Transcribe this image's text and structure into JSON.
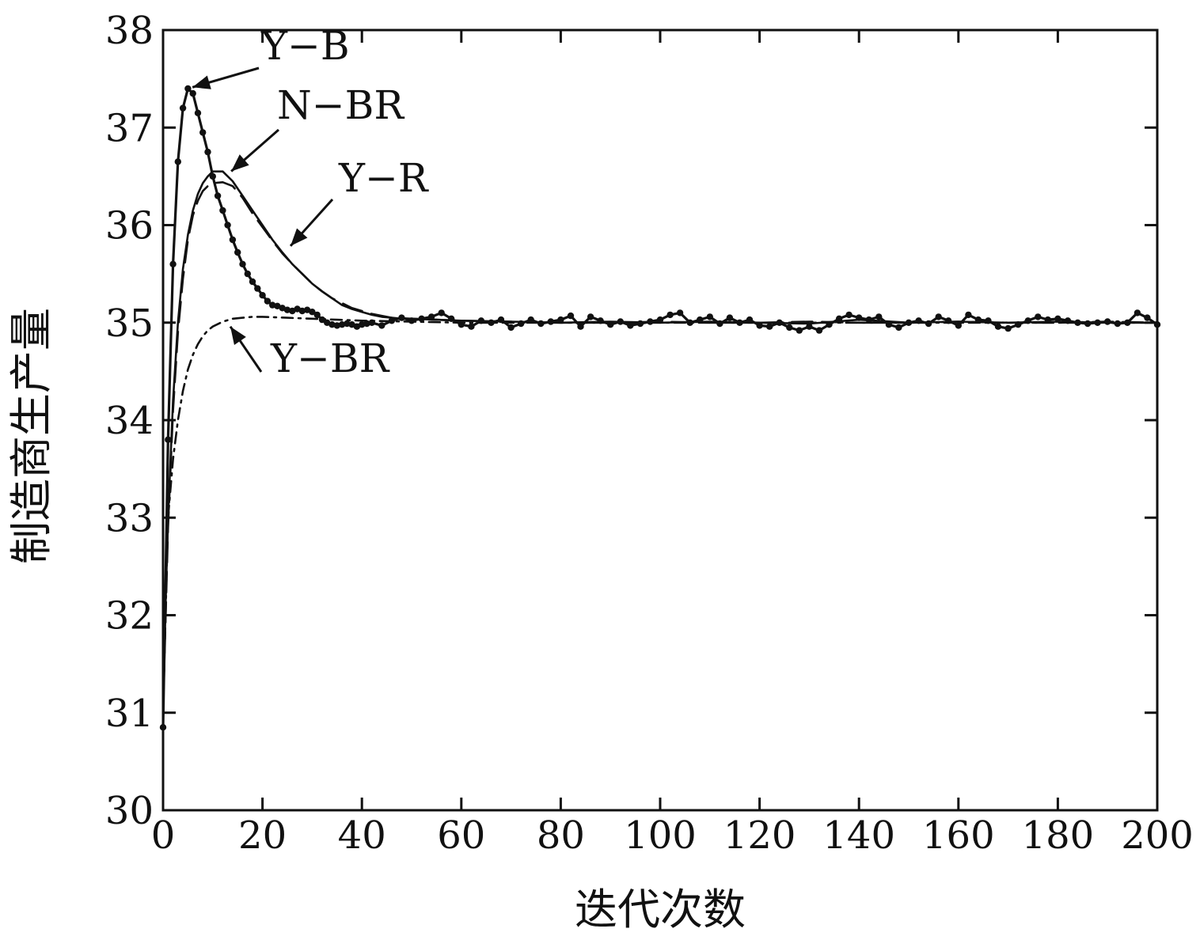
{
  "chart_data": {
    "type": "line",
    "title": "",
    "xlabel": "迭代次数",
    "ylabel": "制造商生产量",
    "xlim": [
      0,
      200
    ],
    "ylim": [
      30,
      38
    ],
    "xticks": [
      0,
      20,
      40,
      60,
      80,
      100,
      120,
      140,
      160,
      180,
      200
    ],
    "yticks": [
      30,
      31,
      32,
      33,
      34,
      35,
      36,
      37,
      38
    ],
    "grid": false,
    "legend": "none",
    "series": [
      {
        "name": "Y−B",
        "style": "solid-dots",
        "color": "#111111",
        "points": [
          [
            0,
            30.85
          ],
          [
            1,
            33.8
          ],
          [
            2,
            35.6
          ],
          [
            3,
            36.65
          ],
          [
            4,
            37.2
          ],
          [
            5,
            37.4
          ],
          [
            6,
            37.35
          ],
          [
            7,
            37.15
          ],
          [
            8,
            36.95
          ],
          [
            9,
            36.75
          ],
          [
            10,
            36.5
          ],
          [
            11,
            36.3
          ],
          [
            12,
            36.15
          ],
          [
            13,
            36.0
          ],
          [
            14,
            35.85
          ],
          [
            15,
            35.72
          ],
          [
            16,
            35.6
          ],
          [
            17,
            35.5
          ],
          [
            18,
            35.42
          ],
          [
            19,
            35.35
          ],
          [
            20,
            35.28
          ],
          [
            21,
            35.22
          ],
          [
            22,
            35.18
          ],
          [
            23,
            35.17
          ],
          [
            24,
            35.15
          ],
          [
            25,
            35.13
          ],
          [
            26,
            35.12
          ],
          [
            27,
            35.14
          ],
          [
            28,
            35.12
          ],
          [
            29,
            35.13
          ],
          [
            30,
            35.11
          ],
          [
            31,
            35.08
          ],
          [
            32,
            35.03
          ],
          [
            33,
            35.0
          ],
          [
            34,
            34.98
          ],
          [
            35,
            34.97
          ],
          [
            36,
            34.98
          ],
          [
            37,
            34.99
          ],
          [
            38,
            34.98
          ],
          [
            39,
            34.96
          ],
          [
            40,
            34.98
          ],
          [
            41,
            34.99
          ],
          [
            42,
            35.0
          ],
          [
            44,
            34.97
          ],
          [
            46,
            35.02
          ],
          [
            48,
            35.05
          ],
          [
            50,
            35.02
          ],
          [
            52,
            35.04
          ],
          [
            54,
            35.06
          ],
          [
            56,
            35.1
          ],
          [
            58,
            35.04
          ],
          [
            60,
            34.98
          ],
          [
            62,
            34.96
          ],
          [
            64,
            35.02
          ],
          [
            66,
            35.0
          ],
          [
            68,
            35.03
          ],
          [
            70,
            34.95
          ],
          [
            72,
            34.99
          ],
          [
            74,
            35.03
          ],
          [
            76,
            34.99
          ],
          [
            78,
            35.01
          ],
          [
            80,
            35.03
          ],
          [
            82,
            35.07
          ],
          [
            84,
            34.96
          ],
          [
            86,
            35.06
          ],
          [
            88,
            35.02
          ],
          [
            90,
            34.98
          ],
          [
            92,
            35.01
          ],
          [
            94,
            34.97
          ],
          [
            96,
            34.99
          ],
          [
            98,
            35.01
          ],
          [
            100,
            35.03
          ],
          [
            102,
            35.08
          ],
          [
            104,
            35.1
          ],
          [
            106,
            35.0
          ],
          [
            108,
            35.03
          ],
          [
            110,
            35.06
          ],
          [
            112,
            34.99
          ],
          [
            114,
            35.05
          ],
          [
            116,
            35.0
          ],
          [
            118,
            35.03
          ],
          [
            120,
            34.97
          ],
          [
            122,
            34.96
          ],
          [
            124,
            35.0
          ],
          [
            126,
            34.95
          ],
          [
            128,
            34.92
          ],
          [
            130,
            34.96
          ],
          [
            132,
            34.92
          ],
          [
            134,
            34.98
          ],
          [
            136,
            35.04
          ],
          [
            138,
            35.08
          ],
          [
            140,
            35.05
          ],
          [
            142,
            35.03
          ],
          [
            144,
            35.06
          ],
          [
            146,
            34.98
          ],
          [
            148,
            34.95
          ],
          [
            150,
            35.0
          ],
          [
            152,
            35.02
          ],
          [
            154,
            34.99
          ],
          [
            156,
            35.06
          ],
          [
            158,
            35.02
          ],
          [
            160,
            34.97
          ],
          [
            162,
            35.08
          ],
          [
            164,
            35.03
          ],
          [
            166,
            35.02
          ],
          [
            168,
            34.96
          ],
          [
            170,
            34.94
          ],
          [
            172,
            34.98
          ],
          [
            174,
            35.02
          ],
          [
            176,
            35.06
          ],
          [
            178,
            35.03
          ],
          [
            180,
            35.04
          ],
          [
            182,
            35.02
          ],
          [
            184,
            35.0
          ],
          [
            186,
            34.99
          ],
          [
            188,
            35.0
          ],
          [
            190,
            35.01
          ],
          [
            192,
            34.99
          ],
          [
            194,
            35.0
          ],
          [
            196,
            35.1
          ],
          [
            198,
            35.05
          ],
          [
            200,
            34.98
          ]
        ]
      },
      {
        "name": "N−BR",
        "style": "solid",
        "color": "#111111",
        "points": [
          [
            0,
            31.2
          ],
          [
            1,
            33.0
          ],
          [
            2,
            34.2
          ],
          [
            3,
            35.0
          ],
          [
            4,
            35.55
          ],
          [
            5,
            35.9
          ],
          [
            6,
            36.15
          ],
          [
            7,
            36.32
          ],
          [
            8,
            36.43
          ],
          [
            9,
            36.5
          ],
          [
            10,
            36.55
          ],
          [
            12,
            36.55
          ],
          [
            14,
            36.45
          ],
          [
            16,
            36.3
          ],
          [
            18,
            36.15
          ],
          [
            20,
            36.0
          ],
          [
            22,
            35.85
          ],
          [
            24,
            35.72
          ],
          [
            26,
            35.6
          ],
          [
            28,
            35.5
          ],
          [
            30,
            35.4
          ],
          [
            32,
            35.32
          ],
          [
            34,
            35.25
          ],
          [
            36,
            35.18
          ],
          [
            38,
            35.14
          ],
          [
            40,
            35.11
          ],
          [
            42,
            35.08
          ],
          [
            44,
            35.06
          ],
          [
            46,
            35.05
          ],
          [
            48,
            35.04
          ],
          [
            50,
            35.04
          ],
          [
            55,
            35.03
          ],
          [
            60,
            35.02
          ],
          [
            70,
            35.01
          ],
          [
            80,
            35.0
          ],
          [
            90,
            35.01
          ],
          [
            100,
            35.0
          ],
          [
            110,
            35.01
          ],
          [
            120,
            35.0
          ],
          [
            130,
            34.99
          ],
          [
            140,
            35.03
          ],
          [
            150,
            35.0
          ],
          [
            160,
            35.01
          ],
          [
            170,
            35.0
          ],
          [
            180,
            35.01
          ],
          [
            190,
            35.0
          ],
          [
            200,
            35.0
          ]
        ]
      },
      {
        "name": "Y−R",
        "style": "dashed",
        "color": "#111111",
        "points": [
          [
            0,
            31.0
          ],
          [
            1,
            32.9
          ],
          [
            2,
            34.1
          ],
          [
            3,
            34.9
          ],
          [
            4,
            35.45
          ],
          [
            5,
            35.85
          ],
          [
            6,
            36.1
          ],
          [
            7,
            36.25
          ],
          [
            8,
            36.35
          ],
          [
            9,
            36.4
          ],
          [
            10,
            36.43
          ],
          [
            12,
            36.44
          ],
          [
            14,
            36.4
          ],
          [
            16,
            36.28
          ],
          [
            18,
            36.12
          ],
          [
            20,
            35.98
          ],
          [
            22,
            35.84
          ],
          [
            24,
            35.71
          ],
          [
            26,
            35.6
          ],
          [
            28,
            35.5
          ],
          [
            30,
            35.4
          ],
          [
            32,
            35.32
          ],
          [
            34,
            35.25
          ],
          [
            36,
            35.2
          ],
          [
            38,
            35.15
          ],
          [
            40,
            35.12
          ],
          [
            42,
            35.09
          ],
          [
            44,
            35.07
          ],
          [
            46,
            35.05
          ],
          [
            50,
            35.04
          ],
          [
            55,
            35.03
          ],
          [
            60,
            35.02
          ],
          [
            70,
            35.01
          ],
          [
            80,
            35.0
          ],
          [
            90,
            35.0
          ],
          [
            100,
            35.01
          ],
          [
            110,
            35.0
          ],
          [
            120,
            35.0
          ],
          [
            130,
            35.01
          ],
          [
            140,
            35.0
          ],
          [
            150,
            35.0
          ],
          [
            160,
            35.01
          ],
          [
            170,
            35.0
          ],
          [
            180,
            35.0
          ],
          [
            190,
            35.01
          ],
          [
            200,
            35.0
          ]
        ]
      },
      {
        "name": "Y−BR",
        "style": "dash-dot",
        "color": "#111111",
        "points": [
          [
            0,
            31.0
          ],
          [
            1,
            33.0
          ],
          [
            2,
            33.6
          ],
          [
            3,
            34.0
          ],
          [
            4,
            34.3
          ],
          [
            5,
            34.52
          ],
          [
            6,
            34.67
          ],
          [
            7,
            34.78
          ],
          [
            8,
            34.86
          ],
          [
            9,
            34.92
          ],
          [
            10,
            34.96
          ],
          [
            12,
            35.01
          ],
          [
            14,
            35.04
          ],
          [
            16,
            35.05
          ],
          [
            18,
            35.06
          ],
          [
            20,
            35.06
          ],
          [
            25,
            35.05
          ],
          [
            30,
            35.04
          ],
          [
            35,
            35.03
          ],
          [
            40,
            35.02
          ],
          [
            50,
            35.01
          ],
          [
            60,
            35.0
          ],
          [
            80,
            35.0
          ],
          [
            100,
            35.0
          ],
          [
            120,
            35.0
          ],
          [
            140,
            35.0
          ],
          [
            160,
            35.0
          ],
          [
            180,
            35.0
          ],
          [
            200,
            35.0
          ]
        ]
      }
    ],
    "annotations": [
      {
        "series": "Y−B",
        "text": "Y−B",
        "point": [
          5,
          37.4
        ]
      },
      {
        "series": "N−BR",
        "text": "N−BR",
        "point": [
          13,
          36.52
        ]
      },
      {
        "series": "Y−R",
        "text": "Y−R",
        "point": [
          25,
          35.75
        ]
      },
      {
        "series": "Y−BR",
        "text": "Y−BR",
        "point": [
          13,
          35.0
        ]
      }
    ]
  }
}
